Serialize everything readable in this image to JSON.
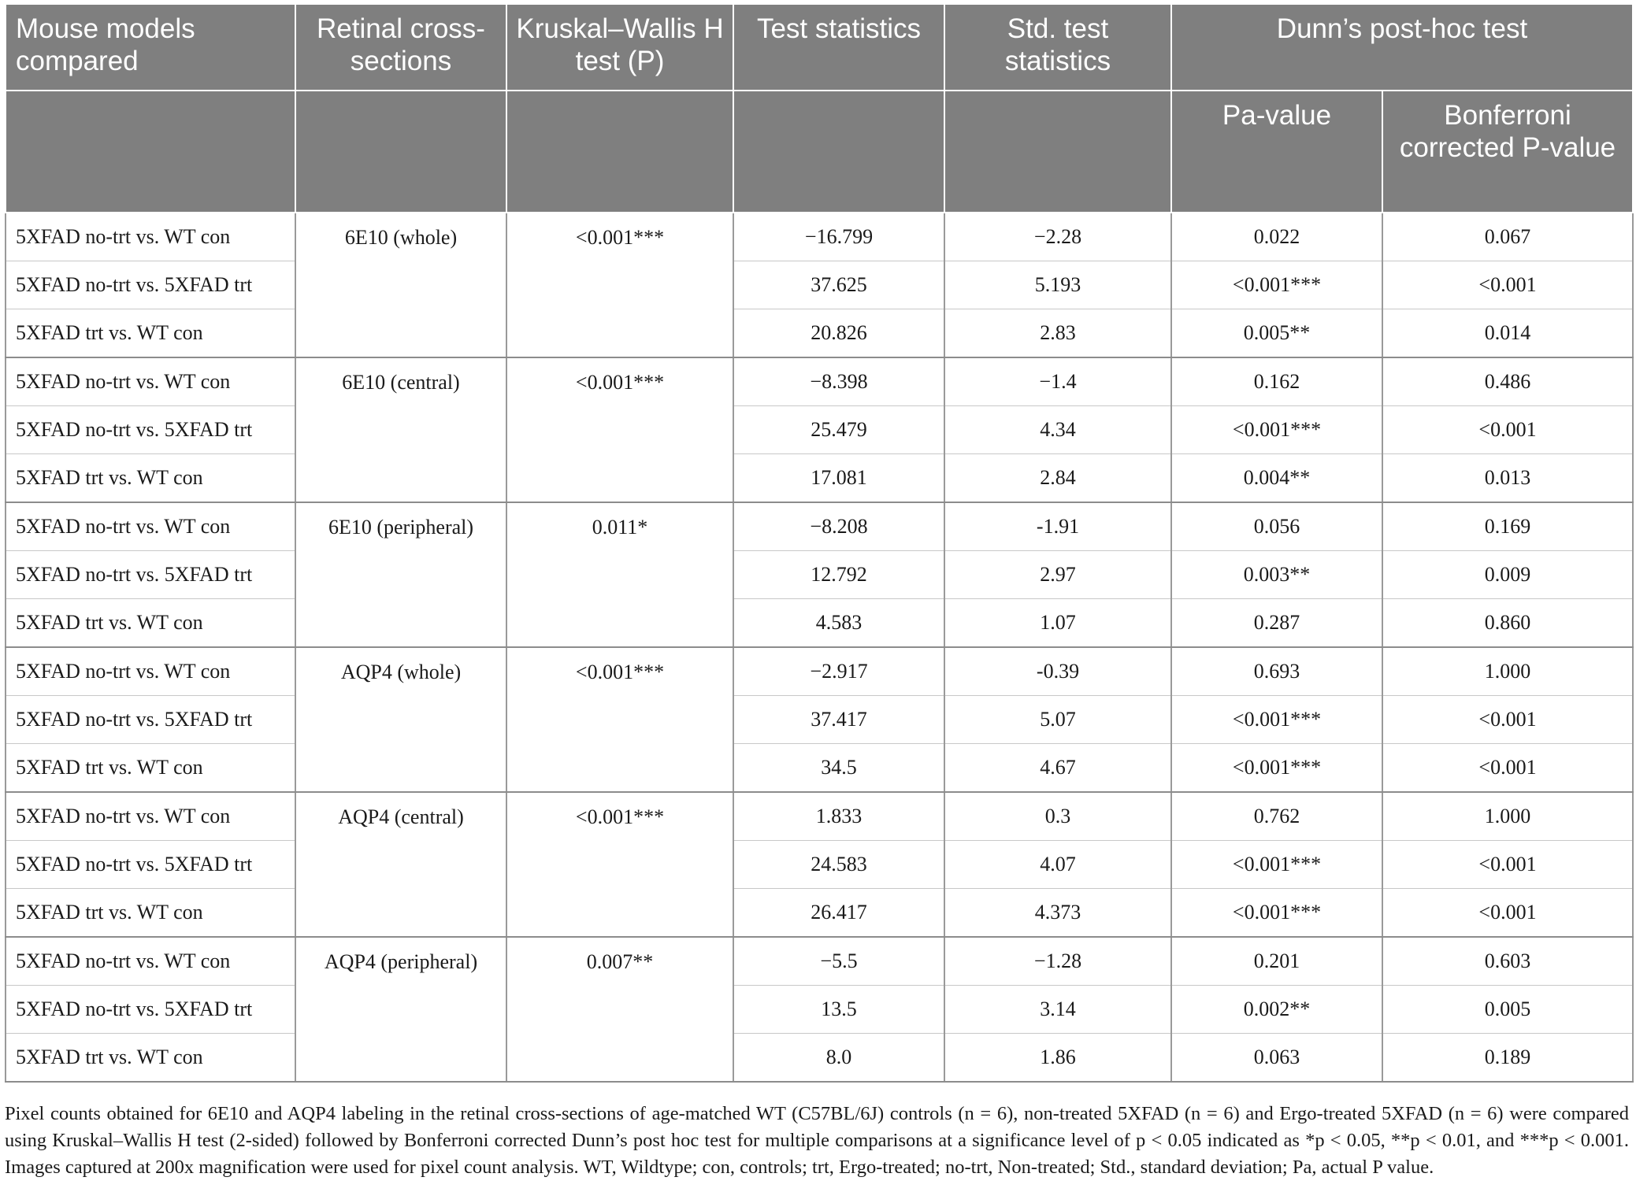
{
  "headers": {
    "mouse_models": "Mouse models compared",
    "retinal": "Retinal cross-sections",
    "kruskal": "Kruskal–Wallis H test (P)",
    "test_stat": "Test statistics",
    "std_stat": "Std. test statistics",
    "dunn": "Dunn’s post-hoc test",
    "p_value": "Pa-value",
    "bonferroni": "Bonferroni corrected P-value"
  },
  "rows": [
    {
      "model": "5XFAD no-trt vs. WT con",
      "test": "−16.799",
      "std": "−2.28",
      "p": "0.022",
      "bonf": "0.067"
    },
    {
      "model": "5XFAD no-trt vs. 5XFAD trt",
      "test": "37.625",
      "std": "5.193",
      "p": "<0.001***",
      "bonf": "<0.001"
    },
    {
      "model": "5XFAD trt vs. WT con",
      "test": "20.826",
      "std": "2.83",
      "p": "0.005**",
      "bonf": "0.014"
    },
    {
      "model": "5XFAD no-trt vs. WT con",
      "test": "−8.398",
      "std": "−1.4",
      "p": "0.162",
      "bonf": "0.486"
    },
    {
      "model": "5XFAD no-trt vs. 5XFAD trt",
      "test": "25.479",
      "std": "4.34",
      "p": "<0.001***",
      "bonf": "<0.001"
    },
    {
      "model": "5XFAD trt vs. WT con",
      "test": "17.081",
      "std": "2.84",
      "p": "0.004**",
      "bonf": "0.013"
    },
    {
      "model": "5XFAD no-trt vs. WT con",
      "test": "−8.208",
      "std": "-1.91",
      "p": "0.056",
      "bonf": "0.169"
    },
    {
      "model": "5XFAD no-trt vs. 5XFAD trt",
      "test": "12.792",
      "std": "2.97",
      "p": "0.003**",
      "bonf": "0.009"
    },
    {
      "model": "5XFAD trt vs. WT con",
      "test": "4.583",
      "std": "1.07",
      "p": "0.287",
      "bonf": "0.860"
    },
    {
      "model": "5XFAD no-trt vs. WT con",
      "test": "−2.917",
      "std": "-0.39",
      "p": "0.693",
      "bonf": "1.000"
    },
    {
      "model": "5XFAD no-trt vs. 5XFAD trt",
      "test": "37.417",
      "std": "5.07",
      "p": "<0.001***",
      "bonf": "<0.001"
    },
    {
      "model": "5XFAD trt vs. WT con",
      "test": "34.5",
      "std": "4.67",
      "p": "<0.001***",
      "bonf": "<0.001"
    },
    {
      "model": "5XFAD no-trt vs. WT con",
      "test": "1.833",
      "std": "0.3",
      "p": "0.762",
      "bonf": "1.000"
    },
    {
      "model": "5XFAD no-trt vs. 5XFAD trt",
      "test": "24.583",
      "std": "4.07",
      "p": "<0.001***",
      "bonf": "<0.001"
    },
    {
      "model": "5XFAD trt vs. WT con",
      "test": "26.417",
      "std": "4.373",
      "p": "<0.001***",
      "bonf": "<0.001"
    },
    {
      "model": "5XFAD no-trt vs. WT con",
      "test": "−5.5",
      "std": "−1.28",
      "p": "0.201",
      "bonf": "0.603"
    },
    {
      "model": "5XFAD no-trt vs. 5XFAD trt",
      "test": "13.5",
      "std": "3.14",
      "p": "0.002**",
      "bonf": "0.005"
    },
    {
      "model": "5XFAD trt vs. WT con",
      "test": "8.0",
      "std": "1.86",
      "p": "0.063",
      "bonf": "0.189"
    }
  ],
  "groups": [
    {
      "section": "6E10 (whole)",
      "kruskal": "<0.001***"
    },
    {
      "section": "6E10 (central)",
      "kruskal": "<0.001***"
    },
    {
      "section": "6E10 (peripheral)",
      "kruskal": "0.011*"
    },
    {
      "section": "AQP4 (whole)",
      "kruskal": "<0.001***"
    },
    {
      "section": "AQP4 (central)",
      "kruskal": "<0.001***"
    },
    {
      "section": "AQP4 (peripheral)",
      "kruskal": "0.007**"
    }
  ],
  "caption": "Pixel counts obtained for 6E10 and AQP4 labeling in the retinal cross-sections of age-matched WT (C57BL/6J) controls (n = 6), non-treated 5XFAD (n = 6) and Ergo-treated 5XFAD (n = 6) were compared using Kruskal–Wallis H test (2-sided) followed by Bonferroni corrected Dunn’s post hoc test for multiple comparisons at a significance level of p < 0.05 indicated as *p < 0.05, **p < 0.01, and ***p < 0.001. Images captured at 200x magnification were used for pixel count analysis. WT, Wildtype; con, controls; trt, Ergo-treated; no-trt, Non-treated; Std., standard deviation; Pa, actual P value."
}
